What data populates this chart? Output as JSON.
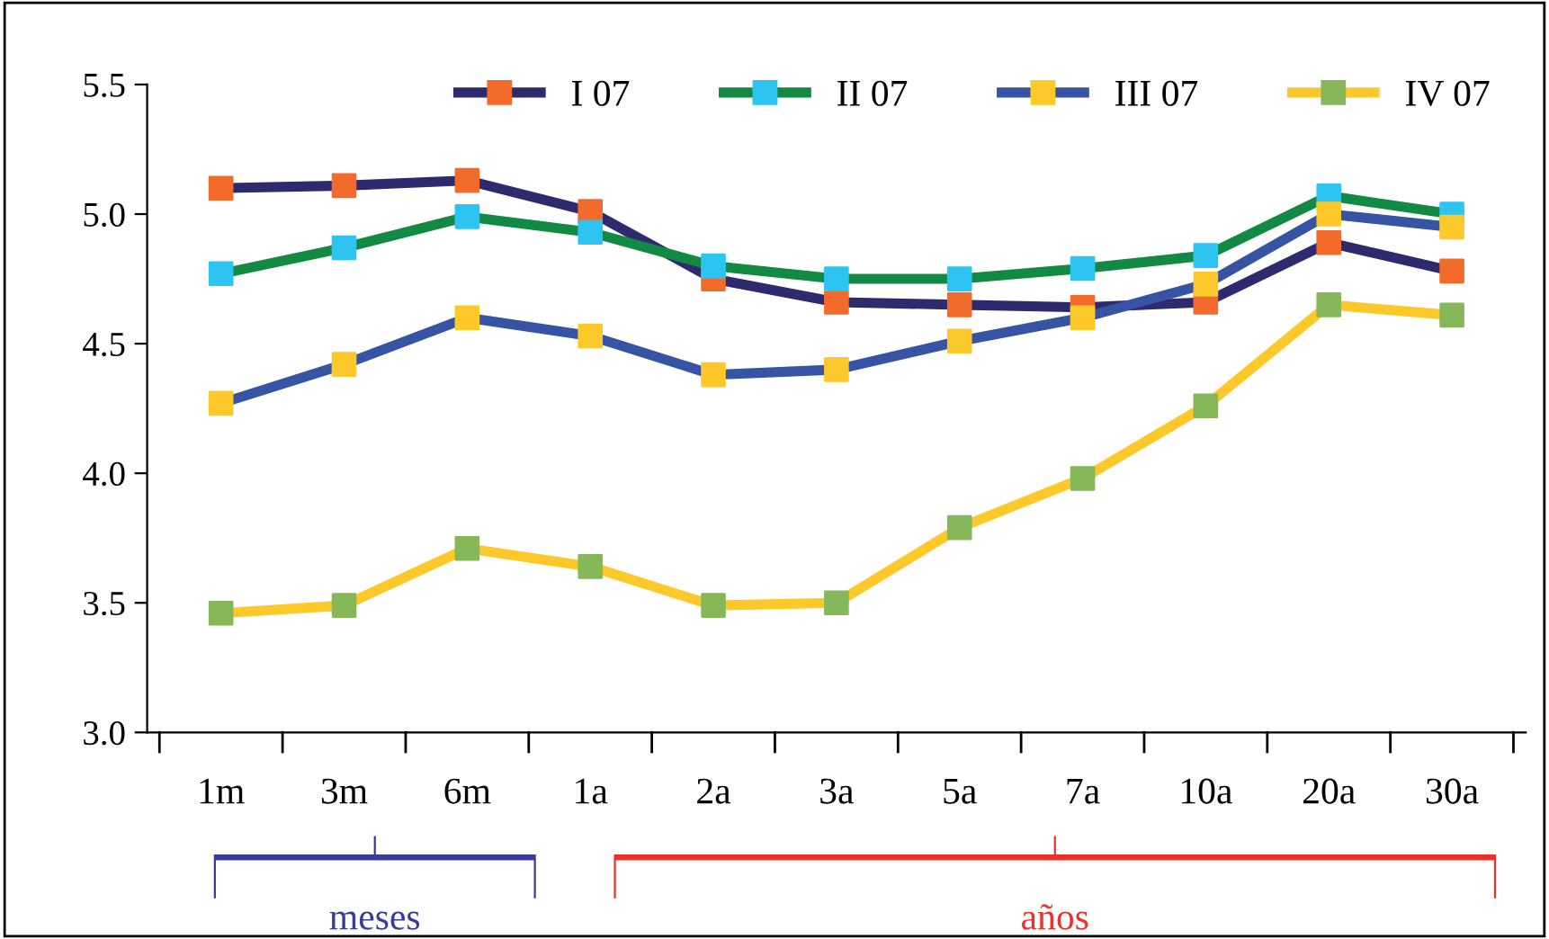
{
  "chart_data": {
    "type": "line",
    "categories": [
      "1m",
      "3m",
      "6m",
      "1a",
      "2a",
      "3a",
      "5a",
      "7a",
      "10a",
      "20a",
      "30a"
    ],
    "series": [
      {
        "name": "I 07",
        "color": "#2e2a6e",
        "colors": [
          "#f26b2a",
          "#f26b2a",
          "#f26b2a",
          "#f26b2a",
          "#f26b2a",
          "#f26b2a",
          "#f26b2a",
          "#f26b2a",
          "#f26b2a",
          "#f26b2a",
          "#f26b2a"
        ],
        "values": [
          5.1,
          5.11,
          5.13,
          5.01,
          4.75,
          4.66,
          4.65,
          4.64,
          4.66,
          4.89,
          4.78
        ]
      },
      {
        "name": "II 07",
        "color": "#138a43",
        "colors": [
          "#2ec4f2",
          "#2ec4f2",
          "#2ec4f2",
          "#2ec4f2",
          "#2ec4f2",
          "#2ec4f2",
          "#2ec4f2",
          "#2ec4f2",
          "#2ec4f2",
          "#2ec4f2",
          "#2ec4f2"
        ],
        "values": [
          4.77,
          4.87,
          4.99,
          4.93,
          4.8,
          4.75,
          4.75,
          4.79,
          4.84,
          5.07,
          5.0
        ]
      },
      {
        "name": "III 07",
        "color": "#3653a4",
        "colors": [
          "#fdc82a",
          "#fdc82a",
          "#fdc82a",
          "#fdc82a",
          "#fdc82a",
          "#fdc82a",
          "#fdc82a",
          "#fdc82a",
          "#fdc82a",
          "#fdc82a",
          "#fdc82a"
        ],
        "values": [
          4.27,
          4.42,
          4.6,
          4.53,
          4.38,
          4.4,
          4.51,
          4.6,
          4.73,
          5.0,
          4.95
        ]
      },
      {
        "name": "IV 07",
        "color": "#fdc82a",
        "colors": [
          "#86b85a",
          "#86b85a",
          "#86b85a",
          "#86b85a",
          "#86b85a",
          "#86b85a",
          "#86b85a",
          "#86b85a",
          "#86b85a",
          "#86b85a",
          "#86b85a"
        ],
        "values": [
          3.46,
          3.49,
          3.71,
          3.64,
          3.49,
          3.5,
          3.79,
          3.98,
          4.26,
          4.65,
          4.61
        ]
      }
    ],
    "ylim": [
      3.0,
      5.5
    ],
    "yticks": [
      {
        "value": 3.0,
        "label": "3.0"
      },
      {
        "value": 3.5,
        "label": "3.5"
      },
      {
        "value": 4.0,
        "label": "4.0"
      },
      {
        "value": 4.5,
        "label": "4.5"
      },
      {
        "value": 5.0,
        "label": "5.0"
      },
      {
        "value": 5.5,
        "label": "5.5"
      }
    ],
    "annotations": [
      "meses",
      "años"
    ],
    "legend": "top",
    "marker": "square",
    "line_style": "solid",
    "grid": false
  }
}
